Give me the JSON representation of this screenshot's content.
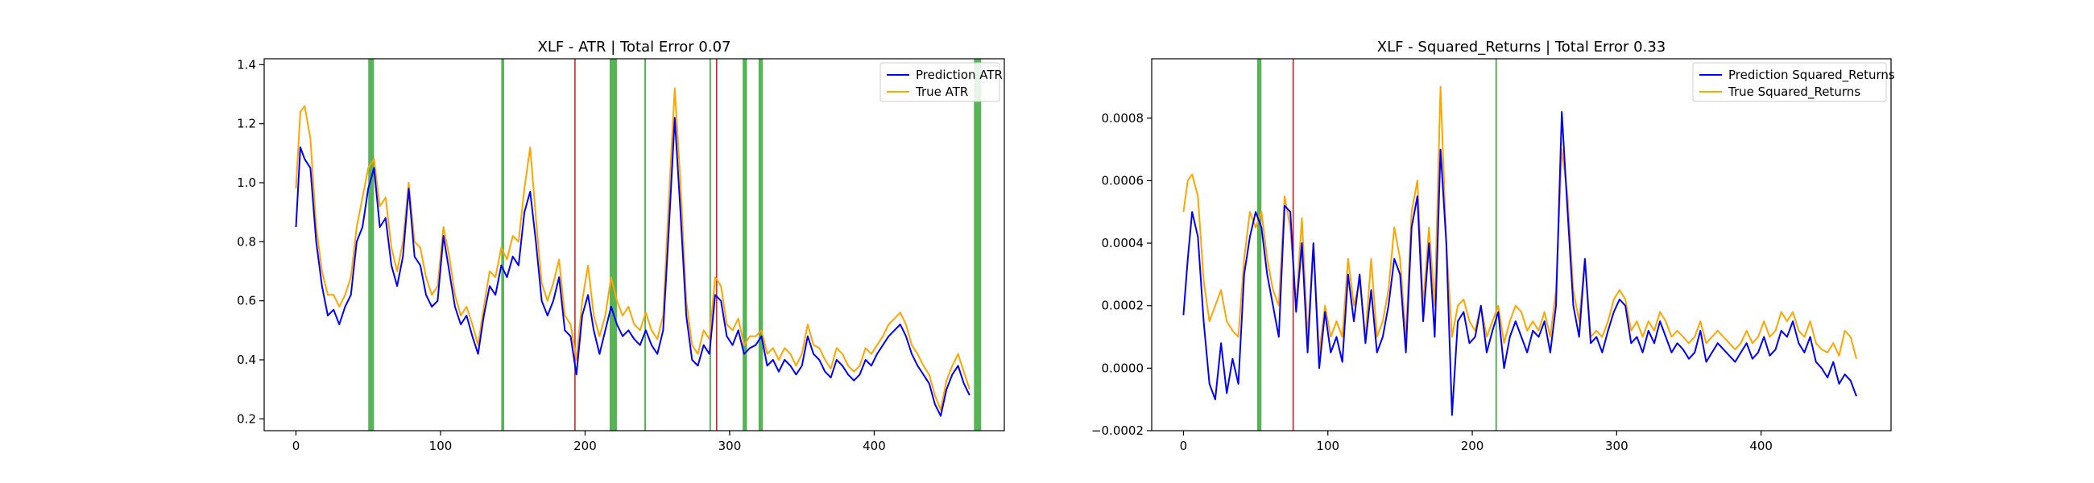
{
  "chart_data": [
    {
      "type": "line",
      "title": "XLF - ATR | Total Error 0.07",
      "xlabel": "",
      "ylabel": "",
      "xlim": [
        -22,
        490
      ],
      "ylim": [
        0.16,
        1.42
      ],
      "xticks": [
        0,
        100,
        200,
        300,
        400
      ],
      "yticks": [
        0.2,
        0.4,
        0.6,
        0.8,
        1.0,
        1.2,
        1.4
      ],
      "ytick_labels": [
        "0.2",
        "0.4",
        "0.6",
        "0.8",
        "1.0",
        "1.2",
        "1.4"
      ],
      "grid": false,
      "legend": "top-right",
      "green_spans": [
        [
          50,
          54
        ],
        [
          142,
          144
        ],
        [
          217,
          222
        ],
        [
          241,
          242
        ],
        [
          286,
          287
        ],
        [
          309,
          312
        ],
        [
          320,
          323
        ],
        [
          469,
          474
        ]
      ],
      "red_lines": [
        193,
        291
      ],
      "series": [
        {
          "name": "Prediction ATR",
          "color": "#0000ff",
          "x": [
            0,
            3,
            6,
            10,
            14,
            18,
            22,
            26,
            30,
            34,
            38,
            42,
            46,
            50,
            54,
            58,
            62,
            66,
            70,
            74,
            78,
            82,
            86,
            90,
            94,
            98,
            102,
            106,
            110,
            114,
            118,
            122,
            126,
            130,
            134,
            138,
            142,
            146,
            150,
            154,
            158,
            162,
            166,
            170,
            174,
            178,
            182,
            186,
            190,
            194,
            198,
            202,
            206,
            210,
            214,
            218,
            222,
            226,
            230,
            234,
            238,
            242,
            246,
            250,
            254,
            258,
            262,
            266,
            270,
            274,
            278,
            282,
            286,
            290,
            294,
            298,
            302,
            306,
            310,
            314,
            318,
            322,
            326,
            330,
            334,
            338,
            342,
            346,
            350,
            354,
            358,
            362,
            366,
            370,
            374,
            378,
            382,
            386,
            390,
            394,
            398,
            402,
            406,
            410,
            414,
            418,
            422,
            426,
            430,
            434,
            438,
            442,
            446,
            450,
            454,
            458,
            462,
            466
          ],
          "values": [
            0.85,
            1.12,
            1.08,
            1.05,
            0.8,
            0.65,
            0.55,
            0.57,
            0.52,
            0.58,
            0.62,
            0.8,
            0.85,
            0.98,
            1.05,
            0.85,
            0.88,
            0.72,
            0.65,
            0.75,
            0.98,
            0.75,
            0.72,
            0.62,
            0.58,
            0.6,
            0.82,
            0.7,
            0.58,
            0.52,
            0.55,
            0.48,
            0.42,
            0.55,
            0.65,
            0.62,
            0.72,
            0.68,
            0.75,
            0.72,
            0.9,
            0.97,
            0.8,
            0.6,
            0.55,
            0.6,
            0.68,
            0.5,
            0.48,
            0.35,
            0.55,
            0.62,
            0.5,
            0.42,
            0.5,
            0.58,
            0.52,
            0.48,
            0.5,
            0.47,
            0.45,
            0.5,
            0.45,
            0.42,
            0.5,
            0.85,
            1.22,
            0.9,
            0.55,
            0.4,
            0.38,
            0.45,
            0.42,
            0.62,
            0.6,
            0.48,
            0.45,
            0.5,
            0.42,
            0.44,
            0.45,
            0.48,
            0.38,
            0.4,
            0.36,
            0.4,
            0.38,
            0.35,
            0.38,
            0.48,
            0.42,
            0.4,
            0.36,
            0.34,
            0.4,
            0.38,
            0.35,
            0.33,
            0.35,
            0.4,
            0.38,
            0.42,
            0.45,
            0.48,
            0.5,
            0.52,
            0.48,
            0.42,
            0.38,
            0.35,
            0.32,
            0.25,
            0.21,
            0.3,
            0.35,
            0.38,
            0.32,
            0.28
          ]
        },
        {
          "name": "True ATR",
          "color": "#ffa500",
          "x": [
            0,
            3,
            6,
            10,
            14,
            18,
            22,
            26,
            30,
            34,
            38,
            42,
            46,
            50,
            54,
            58,
            62,
            66,
            70,
            74,
            78,
            82,
            86,
            90,
            94,
            98,
            102,
            106,
            110,
            114,
            118,
            122,
            126,
            130,
            134,
            138,
            142,
            146,
            150,
            154,
            158,
            162,
            166,
            170,
            174,
            178,
            182,
            186,
            190,
            194,
            198,
            202,
            206,
            210,
            214,
            218,
            222,
            226,
            230,
            234,
            238,
            242,
            246,
            250,
            254,
            258,
            262,
            266,
            270,
            274,
            278,
            282,
            286,
            290,
            294,
            298,
            302,
            306,
            310,
            314,
            318,
            322,
            326,
            330,
            334,
            338,
            342,
            346,
            350,
            354,
            358,
            362,
            366,
            370,
            374,
            378,
            382,
            386,
            390,
            394,
            398,
            402,
            406,
            410,
            414,
            418,
            422,
            426,
            430,
            434,
            438,
            442,
            446,
            450,
            454,
            458,
            462,
            466
          ],
          "values": [
            0.98,
            1.24,
            1.26,
            1.15,
            0.85,
            0.7,
            0.62,
            0.62,
            0.58,
            0.62,
            0.68,
            0.85,
            0.95,
            1.05,
            1.08,
            0.92,
            0.95,
            0.78,
            0.7,
            0.8,
            1.0,
            0.8,
            0.78,
            0.68,
            0.62,
            0.65,
            0.85,
            0.75,
            0.62,
            0.55,
            0.58,
            0.52,
            0.45,
            0.58,
            0.7,
            0.68,
            0.78,
            0.74,
            0.82,
            0.8,
            0.98,
            1.12,
            0.88,
            0.66,
            0.6,
            0.66,
            0.74,
            0.55,
            0.52,
            0.4,
            0.6,
            0.72,
            0.55,
            0.48,
            0.55,
            0.68,
            0.6,
            0.55,
            0.58,
            0.52,
            0.5,
            0.56,
            0.5,
            0.47,
            0.55,
            0.95,
            1.32,
            1.0,
            0.6,
            0.45,
            0.42,
            0.5,
            0.47,
            0.68,
            0.65,
            0.52,
            0.5,
            0.54,
            0.45,
            0.48,
            0.48,
            0.5,
            0.42,
            0.44,
            0.4,
            0.44,
            0.42,
            0.38,
            0.42,
            0.52,
            0.45,
            0.44,
            0.4,
            0.37,
            0.44,
            0.42,
            0.38,
            0.36,
            0.38,
            0.44,
            0.42,
            0.45,
            0.48,
            0.52,
            0.54,
            0.56,
            0.52,
            0.45,
            0.42,
            0.38,
            0.35,
            0.28,
            0.23,
            0.33,
            0.38,
            0.42,
            0.36,
            0.3
          ]
        }
      ]
    },
    {
      "type": "line",
      "title": "XLF - Squared_Returns | Total Error 0.33",
      "xlabel": "",
      "ylabel": "",
      "xlim": [
        -22,
        490
      ],
      "ylim": [
        -0.0002,
        0.00099
      ],
      "xticks": [
        0,
        100,
        200,
        300,
        400
      ],
      "yticks": [
        -0.0002,
        0.0,
        0.0002,
        0.0004,
        0.0006,
        0.0008
      ],
      "ytick_labels": [
        "−0.0002",
        "0.0000",
        "0.0002",
        "0.0004",
        "0.0006",
        "0.0008"
      ],
      "grid": false,
      "legend": "top-right",
      "green_spans": [
        [
          51,
          54
        ],
        [
          216,
          217
        ]
      ],
      "red_lines": [
        76
      ],
      "series": [
        {
          "name": "Prediction Squared_Returns",
          "color": "#0000ff",
          "x": [
            0,
            3,
            6,
            10,
            14,
            18,
            22,
            26,
            30,
            34,
            38,
            42,
            46,
            50,
            54,
            58,
            62,
            66,
            70,
            74,
            78,
            82,
            86,
            90,
            94,
            98,
            102,
            106,
            110,
            114,
            118,
            122,
            126,
            130,
            134,
            138,
            142,
            146,
            150,
            154,
            158,
            162,
            166,
            170,
            174,
            178,
            182,
            186,
            190,
            194,
            198,
            202,
            206,
            210,
            214,
            218,
            222,
            226,
            230,
            234,
            238,
            242,
            246,
            250,
            254,
            258,
            262,
            266,
            270,
            274,
            278,
            282,
            286,
            290,
            294,
            298,
            302,
            306,
            310,
            314,
            318,
            322,
            326,
            330,
            334,
            338,
            342,
            346,
            350,
            354,
            358,
            362,
            366,
            370,
            374,
            378,
            382,
            386,
            390,
            394,
            398,
            402,
            406,
            410,
            414,
            418,
            422,
            426,
            430,
            434,
            438,
            442,
            446,
            450,
            454,
            458,
            462,
            466
          ],
          "values": [
            0.00017,
            0.00035,
            0.0005,
            0.00042,
            0.00015,
            -5e-05,
            -0.0001,
            8e-05,
            -8e-05,
            3e-05,
            -5e-05,
            0.0003,
            0.00042,
            0.0005,
            0.00045,
            0.0003,
            0.0002,
            0.0001,
            0.00052,
            0.0005,
            0.00018,
            0.0004,
            5e-05,
            0.0004,
            0.0,
            0.00018,
            5e-05,
            0.0001,
            2e-05,
            0.0003,
            0.00015,
            0.0003,
            8e-05,
            0.00025,
            5e-05,
            0.0001,
            0.0002,
            0.00035,
            0.0003,
            5e-05,
            0.00045,
            0.00055,
            0.00015,
            0.0004,
            0.0001,
            0.0007,
            0.0004,
            -0.00015,
            0.00015,
            0.00018,
            8e-05,
            0.0001,
            0.0002,
            5e-05,
            0.00012,
            0.00018,
            0.0,
            0.0001,
            0.00015,
            0.0001,
            5e-05,
            0.00012,
            0.0001,
            0.00015,
            5e-05,
            0.0002,
            0.00082,
            0.0005,
            0.0002,
            0.0001,
            0.00035,
            8e-05,
            0.0001,
            5e-05,
            0.00012,
            0.00018,
            0.00022,
            0.0002,
            8e-05,
            0.0001,
            5e-05,
            0.00012,
            8e-05,
            0.00015,
            0.0001,
            5e-05,
            8e-05,
            6e-05,
            3e-05,
            5e-05,
            0.00012,
            2e-05,
            5e-05,
            8e-05,
            6e-05,
            4e-05,
            2e-05,
            5e-05,
            8e-05,
            3e-05,
            5e-05,
            0.0001,
            4e-05,
            6e-05,
            0.00012,
            0.0001,
            0.00015,
            8e-05,
            5e-05,
            0.0001,
            2e-05,
            0.0,
            -3e-05,
            2e-05,
            -5e-05,
            -2e-05,
            -4e-05,
            -9e-05
          ]
        },
        {
          "name": "True Squared_Returns",
          "color": "#ffa500",
          "x": [
            0,
            3,
            6,
            10,
            14,
            18,
            22,
            26,
            30,
            34,
            38,
            42,
            46,
            50,
            54,
            58,
            62,
            66,
            70,
            74,
            78,
            82,
            86,
            90,
            94,
            98,
            102,
            106,
            110,
            114,
            118,
            122,
            126,
            130,
            134,
            138,
            142,
            146,
            150,
            154,
            158,
            162,
            166,
            170,
            174,
            178,
            182,
            186,
            190,
            194,
            198,
            202,
            206,
            210,
            214,
            218,
            222,
            226,
            230,
            234,
            238,
            242,
            246,
            250,
            254,
            258,
            262,
            266,
            270,
            274,
            278,
            282,
            286,
            290,
            294,
            298,
            302,
            306,
            310,
            314,
            318,
            322,
            326,
            330,
            334,
            338,
            342,
            346,
            350,
            354,
            358,
            362,
            366,
            370,
            374,
            378,
            382,
            386,
            390,
            394,
            398,
            402,
            406,
            410,
            414,
            418,
            422,
            426,
            430,
            434,
            438,
            442,
            446,
            450,
            454,
            458,
            462,
            466
          ],
          "values": [
            0.0005,
            0.0006,
            0.00062,
            0.00055,
            0.00028,
            0.00015,
            0.0002,
            0.00025,
            0.00015,
            0.00012,
            0.0001,
            0.00035,
            0.0005,
            0.00045,
            0.0005,
            0.00035,
            0.00025,
            0.0002,
            0.00055,
            0.00045,
            0.0002,
            0.00048,
            0.0001,
            0.0004,
            5e-05,
            0.0002,
            0.0001,
            0.00015,
            0.0001,
            0.00035,
            0.0002,
            0.00028,
            0.0001,
            0.00035,
            0.0001,
            0.00015,
            0.00025,
            0.00045,
            0.00035,
            0.0001,
            0.0005,
            0.0006,
            0.0002,
            0.00045,
            0.0002,
            0.0009,
            0.0004,
            0.0001,
            0.0002,
            0.00022,
            0.00015,
            0.00012,
            0.0002,
            0.0001,
            0.00015,
            0.0002,
            8e-05,
            0.00015,
            0.0002,
            0.00018,
            0.00012,
            0.00015,
            0.00012,
            0.00018,
            0.0001,
            0.00025,
            0.0007,
            0.00055,
            0.00025,
            0.00015,
            0.00035,
            0.0001,
            0.00012,
            0.0001,
            0.00015,
            0.00022,
            0.00025,
            0.00022,
            0.00012,
            0.00015,
            0.0001,
            0.00015,
            0.00012,
            0.00018,
            0.00015,
            0.0001,
            0.00012,
            0.0001,
            8e-05,
            0.0001,
            0.00015,
            8e-05,
            0.0001,
            0.00012,
            0.0001,
            8e-05,
            6e-05,
            8e-05,
            0.00012,
            8e-05,
            0.0001,
            0.00015,
            0.0001,
            0.00012,
            0.00018,
            0.00015,
            0.00018,
            0.00012,
            0.0001,
            0.00015,
            8e-05,
            6e-05,
            5e-05,
            8e-05,
            4e-05,
            0.00012,
            0.0001,
            3e-05
          ]
        }
      ]
    }
  ]
}
